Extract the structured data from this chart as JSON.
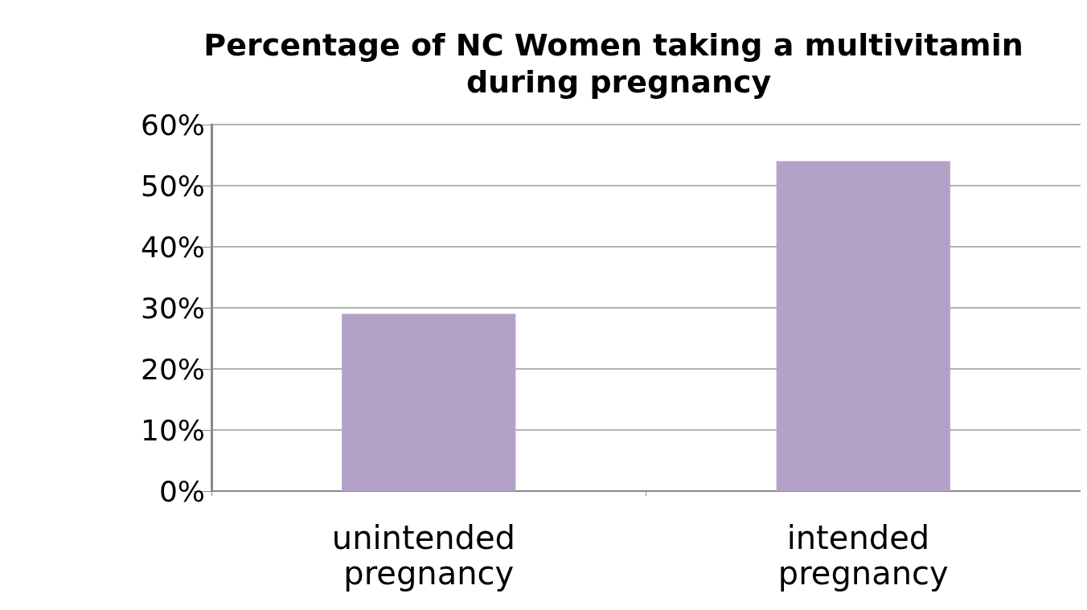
{
  "chart_data": {
    "type": "bar",
    "title": "Percentage of NC Women taking a multivitamin during pregnancy",
    "categories": [
      "unintended pregnancy",
      "intended pregnancy"
    ],
    "values": [
      29,
      54
    ],
    "color": "#b3a2c7",
    "ylim": [
      0,
      60
    ],
    "yticks": [
      {
        "value": 0,
        "label": "0%"
      },
      {
        "value": 10,
        "label": "10%"
      },
      {
        "value": 20,
        "label": "20%"
      },
      {
        "value": 30,
        "label": "30%"
      },
      {
        "value": 40,
        "label": "40%"
      },
      {
        "value": 50,
        "label": "50%"
      },
      {
        "value": 60,
        "label": "60%"
      }
    ],
    "grid": "y"
  }
}
